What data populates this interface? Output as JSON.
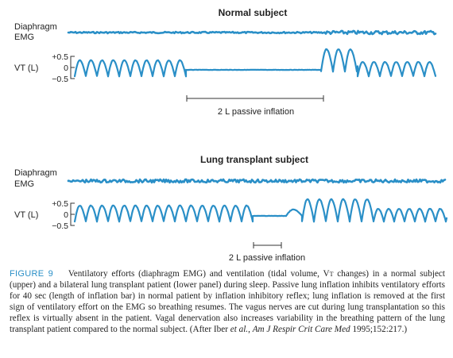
{
  "panels": [
    {
      "title": "Normal subject",
      "emg_label": [
        "Diaphragm",
        "EMG"
      ],
      "vt_label": "VT (L)",
      "ticks": [
        "+0.5",
        "0",
        "−0.5"
      ],
      "bar_label": "2 L passive inflation"
    },
    {
      "title": "Lung transplant subject",
      "emg_label": [
        "Diaphragm",
        "EMG"
      ],
      "vt_label": "VT (L)",
      "ticks": [
        "+0.5",
        "0",
        "−0.5"
      ],
      "bar_label": "2 L passive inflation"
    }
  ],
  "caption": {
    "fig_label": "FIGURE 9",
    "text_a": "Ventilatory efforts (diaphragm EMG) and ventilation (tidal volume, V",
    "vt_sub": "T",
    "text_b": " changes) in a normal subject (upper) and a bilateral lung transplant patient (lower panel) during sleep. Passive lung inflation inhibits ventilatory efforts for 40 sec (length of inflation bar) in normal patient by inflation inhibitory reflex; lung inflation is removed at the first sign of ventilatory effort on the EMG so breathing resumes. The vagus nerves are cut during lung transplantation so this reflex is virtually absent in the patient. Vagal denervation also increases variability in the breathing pattern of the lung transplant patient compared to the normal subject. (After Iber ",
    "et_al": "et al.",
    "text_c": ", ",
    "journal": "Am J Respir Crit Care Med",
    "text_d": " 1995;152:217.)"
  }
}
